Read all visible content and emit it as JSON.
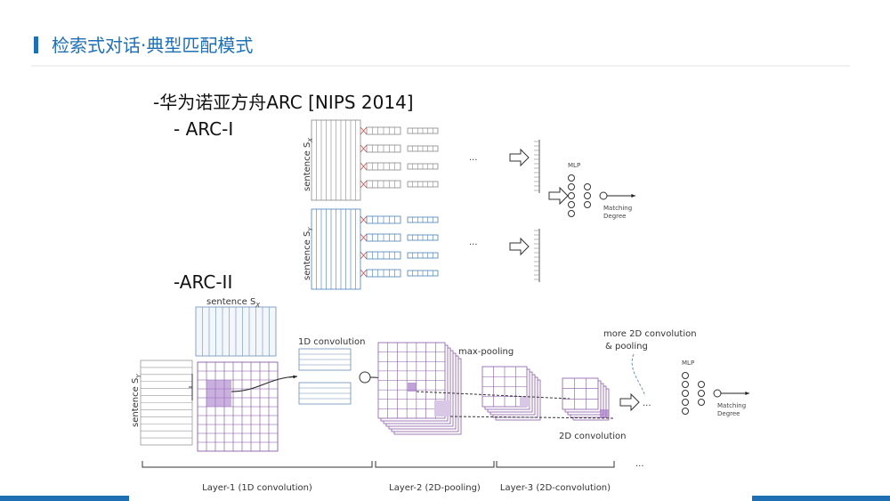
{
  "header": {
    "title": "检索式对话·典型匹配模式"
  },
  "body": {
    "heading": "-华为诺亚方舟ARC [NIPS 2014]",
    "arc1_label": "- ARC-I",
    "arc2_label": "-ARC-II"
  },
  "arc1": {
    "sentence_x": {
      "text": "sentence S",
      "sub": "X"
    },
    "sentence_y": {
      "text": "sentence S",
      "sub": "Y"
    },
    "ellipsis": "...",
    "mlp": "MLP",
    "output": [
      "Matching",
      "Degree"
    ]
  },
  "arc2": {
    "sentence_x": {
      "text": "sentence S",
      "sub": "X"
    },
    "sentence_y": {
      "text": "sentence S",
      "sub": "Y"
    },
    "conv1d": "1D convolution",
    "maxpool": "max-pooling",
    "more": [
      "more 2D convolution",
      "& pooling"
    ],
    "conv2d": "2D convolution",
    "mlp": "MLP",
    "output": [
      "Matching",
      "Degree"
    ],
    "ellipsis": "...",
    "layers": [
      "Layer-1 (1D convolution)",
      "Layer-2 (2D-pooling)",
      "Layer-3 (2D-convolution)"
    ]
  }
}
